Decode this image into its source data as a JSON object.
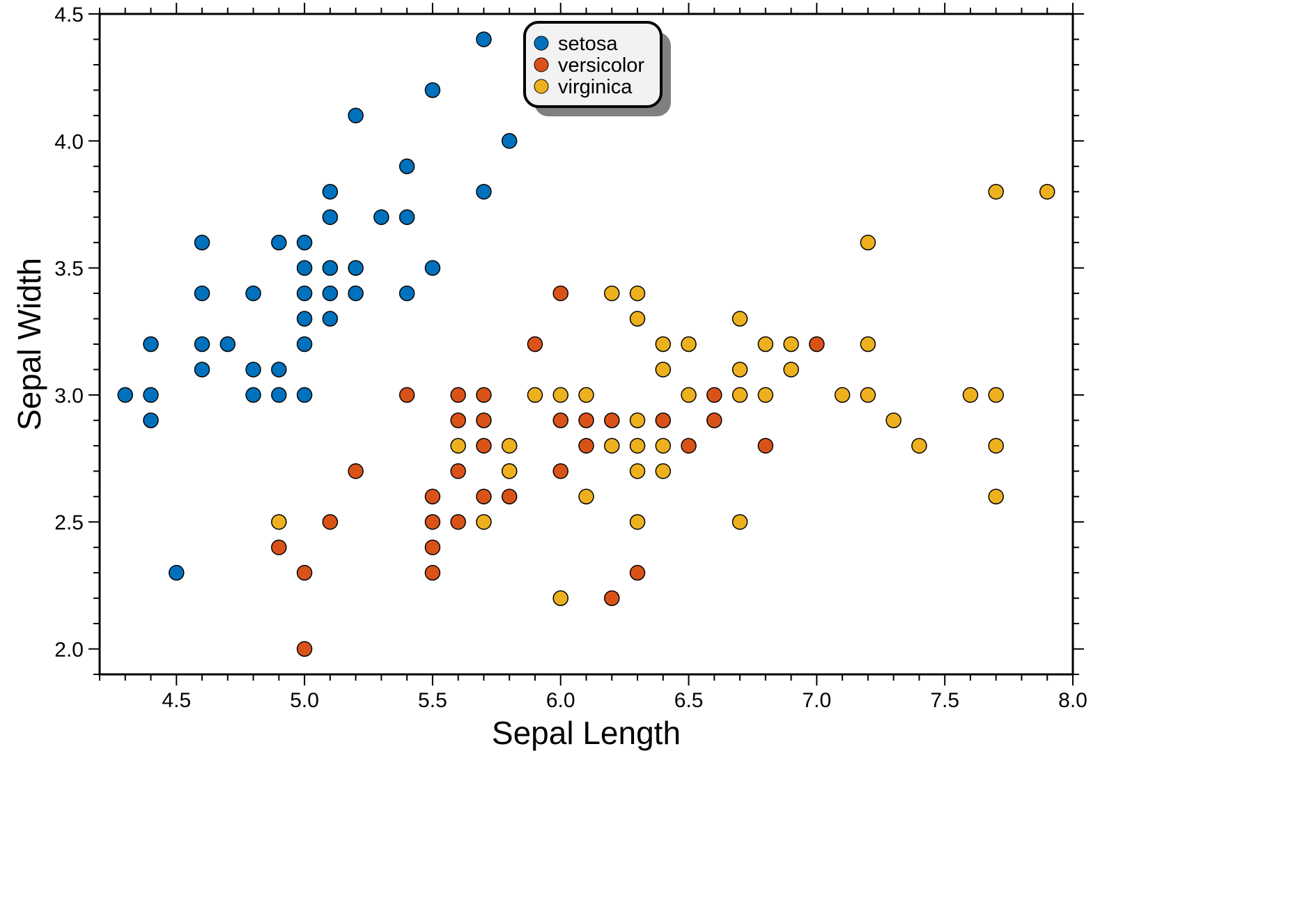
{
  "chart_data": {
    "type": "scatter",
    "xlabel": "Sepal Length",
    "ylabel": "Sepal Width",
    "xlim": [
      4.2,
      8.0
    ],
    "ylim": [
      1.9,
      4.5
    ],
    "x_ticks": [
      "4.5",
      "5.0",
      "5.5",
      "6.0",
      "6.5",
      "7.0",
      "7.5",
      "8.0"
    ],
    "y_ticks": [
      "2.0",
      "2.5",
      "3.0",
      "3.5",
      "4.0",
      "4.5"
    ],
    "legend_position": "top-center",
    "series": [
      {
        "name": "setosa",
        "color": "#0072bd",
        "points": [
          [
            4.3,
            3.0
          ],
          [
            4.4,
            3.2
          ],
          [
            4.4,
            3.0
          ],
          [
            4.4,
            2.9
          ],
          [
            4.5,
            2.3
          ],
          [
            4.6,
            3.6
          ],
          [
            4.6,
            3.4
          ],
          [
            4.6,
            3.2
          ],
          [
            4.6,
            3.1
          ],
          [
            4.7,
            3.2
          ],
          [
            4.8,
            3.4
          ],
          [
            4.8,
            3.1
          ],
          [
            4.8,
            3.0
          ],
          [
            4.9,
            3.6
          ],
          [
            4.9,
            3.1
          ],
          [
            4.9,
            3.0
          ],
          [
            5.0,
            3.6
          ],
          [
            5.0,
            3.5
          ],
          [
            5.0,
            3.4
          ],
          [
            5.0,
            3.3
          ],
          [
            5.0,
            3.2
          ],
          [
            5.0,
            3.0
          ],
          [
            5.1,
            3.8
          ],
          [
            5.1,
            3.7
          ],
          [
            5.1,
            3.5
          ],
          [
            5.1,
            3.4
          ],
          [
            5.1,
            3.3
          ],
          [
            5.2,
            4.1
          ],
          [
            5.2,
            3.5
          ],
          [
            5.2,
            3.4
          ],
          [
            5.3,
            3.7
          ],
          [
            5.4,
            3.9
          ],
          [
            5.4,
            3.7
          ],
          [
            5.4,
            3.4
          ],
          [
            5.5,
            4.2
          ],
          [
            5.5,
            3.5
          ],
          [
            5.7,
            4.4
          ],
          [
            5.7,
            3.8
          ],
          [
            5.8,
            4.0
          ]
        ]
      },
      {
        "name": "versicolor",
        "color": "#d95319",
        "points": [
          [
            4.9,
            2.4
          ],
          [
            5.0,
            2.3
          ],
          [
            5.0,
            2.0
          ],
          [
            5.1,
            2.5
          ],
          [
            5.2,
            2.7
          ],
          [
            5.4,
            3.0
          ],
          [
            5.5,
            2.6
          ],
          [
            5.5,
            2.5
          ],
          [
            5.5,
            2.4
          ],
          [
            5.5,
            2.3
          ],
          [
            5.6,
            3.0
          ],
          [
            5.6,
            2.9
          ],
          [
            5.6,
            2.7
          ],
          [
            5.6,
            2.5
          ],
          [
            5.7,
            3.0
          ],
          [
            5.7,
            2.9
          ],
          [
            5.7,
            2.8
          ],
          [
            5.7,
            2.6
          ],
          [
            5.8,
            2.7
          ],
          [
            5.8,
            2.6
          ],
          [
            5.9,
            3.2
          ],
          [
            6.0,
            3.4
          ],
          [
            6.0,
            2.9
          ],
          [
            6.0,
            2.7
          ],
          [
            6.1,
            2.9
          ],
          [
            6.1,
            2.8
          ],
          [
            6.2,
            2.9
          ],
          [
            6.2,
            2.2
          ],
          [
            6.3,
            2.3
          ],
          [
            6.4,
            2.9
          ],
          [
            6.5,
            2.8
          ],
          [
            6.6,
            3.0
          ],
          [
            6.6,
            2.9
          ],
          [
            6.8,
            2.8
          ],
          [
            7.0,
            3.2
          ]
        ]
      },
      {
        "name": "virginica",
        "color": "#edb120",
        "points": [
          [
            4.9,
            2.5
          ],
          [
            5.6,
            2.8
          ],
          [
            5.7,
            2.5
          ],
          [
            5.8,
            2.8
          ],
          [
            5.8,
            2.7
          ],
          [
            5.9,
            3.0
          ],
          [
            6.0,
            3.0
          ],
          [
            6.0,
            2.2
          ],
          [
            6.1,
            3.0
          ],
          [
            6.1,
            2.6
          ],
          [
            6.2,
            3.4
          ],
          [
            6.2,
            2.8
          ],
          [
            6.3,
            3.4
          ],
          [
            6.3,
            3.3
          ],
          [
            6.3,
            2.9
          ],
          [
            6.3,
            2.8
          ],
          [
            6.3,
            2.7
          ],
          [
            6.3,
            2.5
          ],
          [
            6.4,
            3.2
          ],
          [
            6.4,
            3.1
          ],
          [
            6.4,
            2.8
          ],
          [
            6.4,
            2.7
          ],
          [
            6.5,
            3.2
          ],
          [
            6.5,
            3.0
          ],
          [
            6.7,
            3.3
          ],
          [
            6.7,
            3.1
          ],
          [
            6.7,
            3.0
          ],
          [
            6.7,
            2.5
          ],
          [
            6.8,
            3.2
          ],
          [
            6.8,
            3.0
          ],
          [
            6.9,
            3.2
          ],
          [
            6.9,
            3.1
          ],
          [
            7.1,
            3.0
          ],
          [
            7.2,
            3.6
          ],
          [
            7.2,
            3.2
          ],
          [
            7.2,
            3.0
          ],
          [
            7.3,
            2.9
          ],
          [
            7.4,
            2.8
          ],
          [
            7.6,
            3.0
          ],
          [
            7.7,
            3.8
          ],
          [
            7.7,
            3.0
          ],
          [
            7.7,
            2.8
          ],
          [
            7.7,
            2.6
          ],
          [
            7.9,
            3.8
          ]
        ]
      }
    ]
  }
}
